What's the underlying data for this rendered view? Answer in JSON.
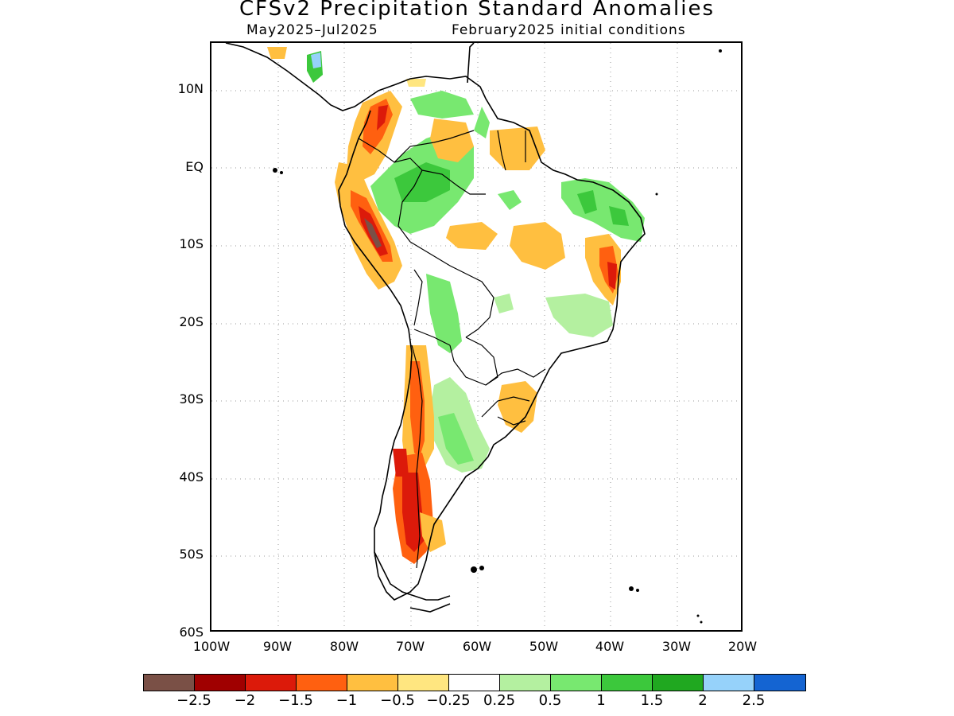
{
  "title": "CFSv2 Precipitation Standard Anomalies",
  "subtitle_left": "May2025–Jul2025",
  "subtitle_right": "February2025 initial conditions",
  "map": {
    "lat_labels": [
      "10N",
      "EQ",
      "10S",
      "20S",
      "30S",
      "40S",
      "50S",
      "60S"
    ],
    "lon_labels": [
      "100W",
      "90W",
      "80W",
      "70W",
      "60W",
      "50W",
      "40W",
      "30W",
      "20W"
    ],
    "region": "South America",
    "anomaly_features": [
      {
        "name": "andes-dry-north",
        "level": -2.5
      },
      {
        "name": "patagonia-dry",
        "level": -1.5
      },
      {
        "name": "ne-brazil-dry",
        "level": -1.5
      },
      {
        "name": "amazon-wet",
        "level": 1.0
      },
      {
        "name": "central-america-wet",
        "level": 2.0
      }
    ]
  },
  "colorbar": {
    "colors": [
      "#7a5046",
      "#a00000",
      "#dc1a0a",
      "#ff6010",
      "#ffbf40",
      "#ffe680",
      "#ffffff",
      "#b4f0a0",
      "#78e870",
      "#3cc83c",
      "#20a820",
      "#96d2fa",
      "#1464d2"
    ],
    "labels": [
      "−2.5",
      "−2",
      "−1.5",
      "−1",
      "−0.5",
      "−0.25",
      "0.25",
      "0.5",
      "1",
      "1.5",
      "2",
      "2.5"
    ]
  }
}
